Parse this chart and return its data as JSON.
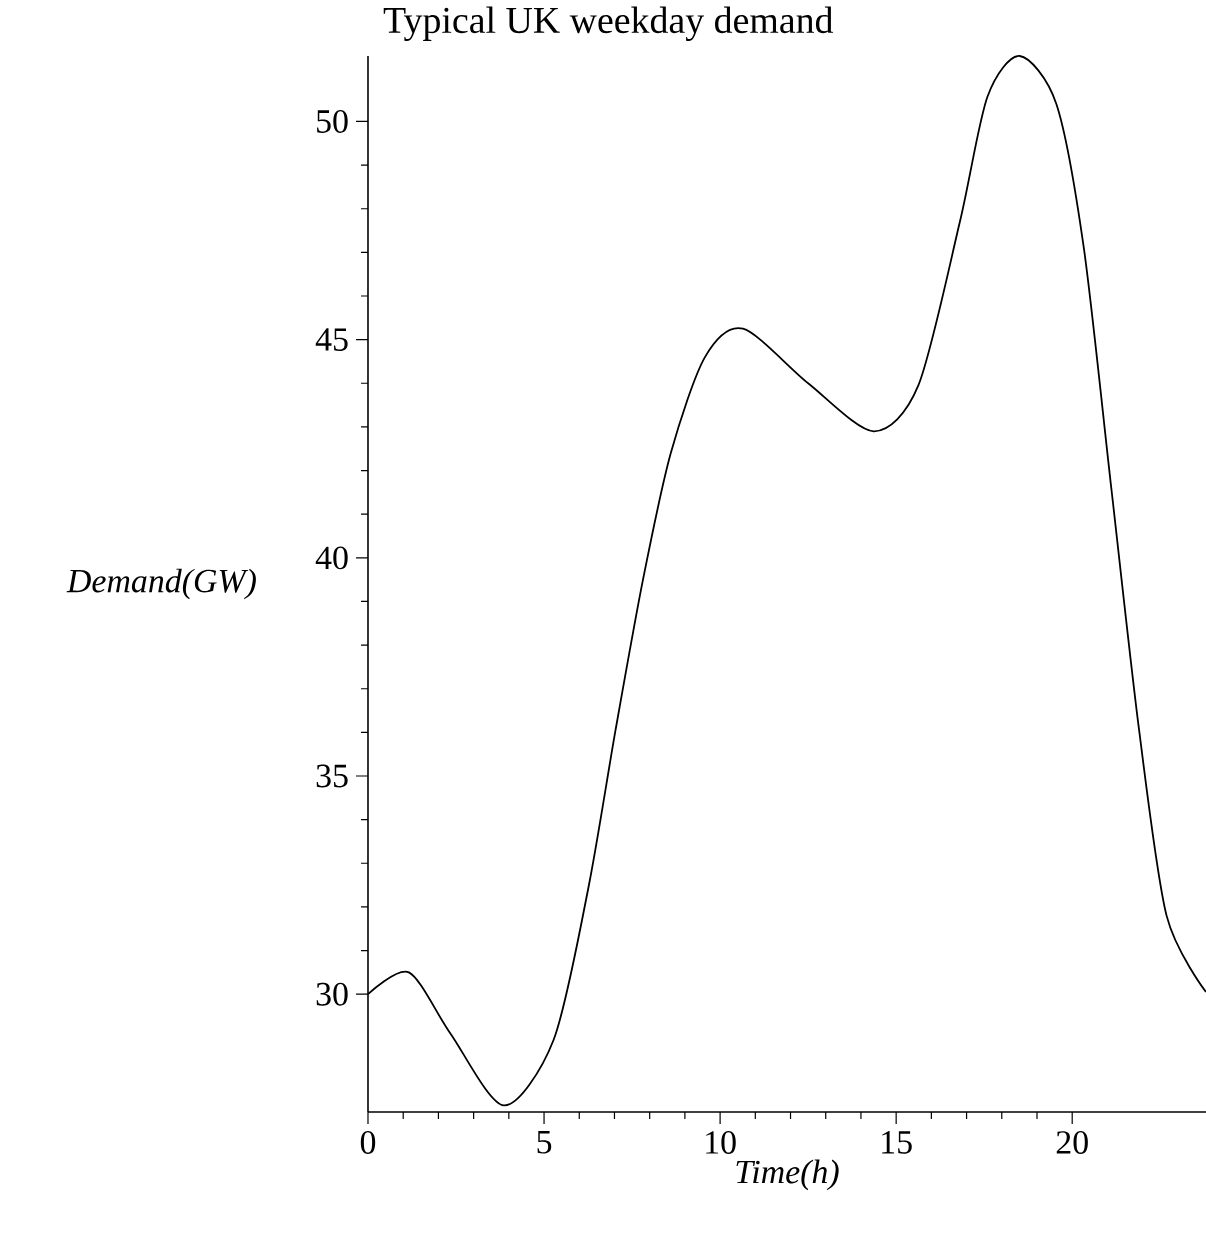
{
  "chart_data": {
    "type": "line",
    "title": "Typical UK weekday demand",
    "xlabel": "Time(h)",
    "ylabel": "Demand(GW)",
    "x": [
      0,
      1.16,
      2.34,
      3.86,
      5.27,
      6.25,
      7.03,
      7.81,
      8.6,
      9.57,
      10.65,
      12.5,
      14.36,
      15.63,
      16.81,
      17.59,
      18.51,
      19.55,
      20.33,
      21.11,
      21.9,
      22.68,
      23.8
    ],
    "series": [
      {
        "color": "#000000",
        "values": [
          30,
          30.5,
          29.1,
          27.45,
          28.95,
          32.4,
          36.05,
          39.5,
          42.4,
          44.6,
          45.25,
          44.0,
          42.9,
          43.95,
          47.7,
          50.56,
          51.5,
          50.4,
          47.1,
          41.6,
          36.05,
          31.8,
          30.05
        ]
      }
    ],
    "xlim": [
      0,
      23.8
    ],
    "ylim": [
      27.3,
      51.5
    ],
    "xticks": [
      0,
      5,
      10,
      15,
      20
    ],
    "yticks": [
      30,
      35,
      40,
      45,
      50
    ],
    "grid": false,
    "marker": "none",
    "line_style": "solid"
  }
}
